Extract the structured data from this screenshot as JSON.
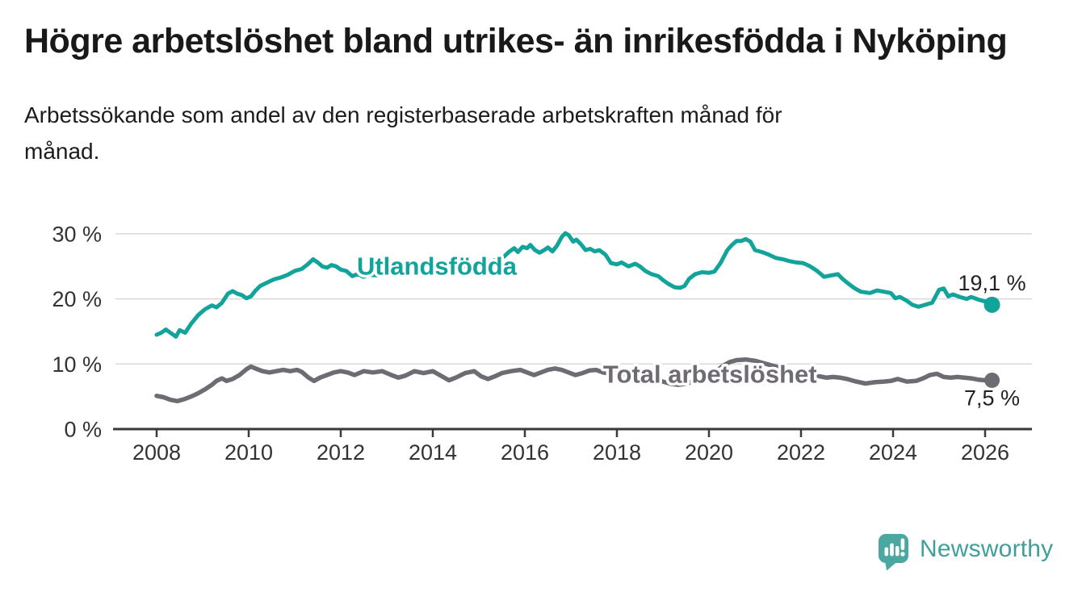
{
  "header": {
    "title": "Högre arbetslöshet bland utrikes- än inrikesfödda i Nyköping",
    "subtitle_line1": "Arbetssökande som andel av den registerbaserade arbetskraften månad för",
    "subtitle_line2": "månad."
  },
  "footer": {
    "logo_text": "Newsworthy",
    "logo_color": "#3f9f9c",
    "logo_icon_color": "#4aa7a1",
    "logo_icon": "speech-bubble-bar-chart-exclamation"
  },
  "chart_data": {
    "type": "line",
    "title": "Högre arbetslöshet bland utrikes- än inrikesfödda i Nyköping",
    "subtitle": "Arbetssökande som andel av den registerbaserade arbetskraften månad för månad.",
    "unit": "%",
    "grid": true,
    "legend_position": "inline-labels",
    "axis_color": "#3a3a3a",
    "grid_color": "#d9d9d9",
    "text_color": "#333333",
    "value_label_color": "#222222",
    "x_axis": {
      "ticks": [
        2008,
        2010,
        2012,
        2014,
        2016,
        2018,
        2020,
        2022,
        2024,
        2026
      ],
      "range": [
        2007.1,
        2027.0
      ]
    },
    "y_axis": {
      "ticks": [
        0,
        10,
        20,
        30
      ],
      "tick_suffix": " %",
      "range": [
        0,
        33
      ]
    },
    "series": [
      {
        "name": "Utlandsfödda",
        "color": "#12a39a",
        "line_width": 5,
        "inline_label": {
          "year": 2012.35,
          "value": 23.7
        },
        "end_dot": true,
        "end_value": 19.1,
        "end_label": "19,1 %",
        "end_label_position": "above",
        "points": [
          [
            2008.0,
            14.5
          ],
          [
            2008.1,
            14.8
          ],
          [
            2008.2,
            15.3
          ],
          [
            2008.3,
            14.8
          ],
          [
            2008.42,
            14.2
          ],
          [
            2008.5,
            15.2
          ],
          [
            2008.62,
            14.8
          ],
          [
            2008.75,
            16.2
          ],
          [
            2008.9,
            17.5
          ],
          [
            2009.05,
            18.4
          ],
          [
            2009.2,
            19.0
          ],
          [
            2009.3,
            18.7
          ],
          [
            2009.42,
            19.4
          ],
          [
            2009.55,
            20.8
          ],
          [
            2009.65,
            21.2
          ],
          [
            2009.75,
            20.8
          ],
          [
            2009.85,
            20.6
          ],
          [
            2009.95,
            20.1
          ],
          [
            2010.05,
            20.4
          ],
          [
            2010.15,
            21.3
          ],
          [
            2010.25,
            22.0
          ],
          [
            2010.4,
            22.5
          ],
          [
            2010.55,
            23.0
          ],
          [
            2010.7,
            23.3
          ],
          [
            2010.85,
            23.7
          ],
          [
            2011.0,
            24.3
          ],
          [
            2011.15,
            24.6
          ],
          [
            2011.28,
            25.3
          ],
          [
            2011.4,
            26.1
          ],
          [
            2011.5,
            25.6
          ],
          [
            2011.6,
            25.0
          ],
          [
            2011.7,
            24.8
          ],
          [
            2011.8,
            25.2
          ],
          [
            2011.9,
            25.0
          ],
          [
            2012.0,
            24.5
          ],
          [
            2012.12,
            24.3
          ],
          [
            2012.25,
            23.5
          ],
          [
            2012.37,
            23.8
          ],
          [
            2012.5,
            23.4
          ],
          [
            2012.62,
            23.7
          ],
          [
            2012.8,
            23.6
          ],
          [
            2013.0,
            23.9
          ],
          [
            2013.2,
            24.1
          ],
          [
            2013.4,
            24.0
          ],
          [
            2013.6,
            24.3
          ],
          [
            2013.8,
            24.5
          ],
          [
            2014.0,
            24.4
          ],
          [
            2014.25,
            24.7
          ],
          [
            2014.5,
            24.9
          ],
          [
            2014.75,
            25.1
          ],
          [
            2015.0,
            25.3
          ],
          [
            2015.2,
            25.6
          ],
          [
            2015.4,
            26.1
          ],
          [
            2015.55,
            26.5
          ],
          [
            2015.65,
            27.2
          ],
          [
            2015.77,
            27.8
          ],
          [
            2015.85,
            27.2
          ],
          [
            2015.95,
            28.0
          ],
          [
            2016.05,
            27.8
          ],
          [
            2016.12,
            28.3
          ],
          [
            2016.22,
            27.5
          ],
          [
            2016.32,
            27.1
          ],
          [
            2016.42,
            27.5
          ],
          [
            2016.5,
            27.9
          ],
          [
            2016.6,
            27.3
          ],
          [
            2016.7,
            28.2
          ],
          [
            2016.8,
            29.5
          ],
          [
            2016.88,
            30.1
          ],
          [
            2016.95,
            29.8
          ],
          [
            2017.05,
            28.8
          ],
          [
            2017.12,
            29.1
          ],
          [
            2017.22,
            28.4
          ],
          [
            2017.32,
            27.5
          ],
          [
            2017.42,
            27.7
          ],
          [
            2017.52,
            27.3
          ],
          [
            2017.62,
            27.5
          ],
          [
            2017.75,
            26.8
          ],
          [
            2017.87,
            25.5
          ],
          [
            2018.0,
            25.3
          ],
          [
            2018.1,
            25.6
          ],
          [
            2018.25,
            25.0
          ],
          [
            2018.4,
            25.4
          ],
          [
            2018.5,
            25.0
          ],
          [
            2018.62,
            24.3
          ],
          [
            2018.75,
            23.8
          ],
          [
            2018.9,
            23.5
          ],
          [
            2019.0,
            22.9
          ],
          [
            2019.12,
            22.3
          ],
          [
            2019.25,
            21.8
          ],
          [
            2019.37,
            21.7
          ],
          [
            2019.47,
            22.0
          ],
          [
            2019.57,
            23.1
          ],
          [
            2019.7,
            23.8
          ],
          [
            2019.85,
            24.1
          ],
          [
            2020.0,
            24.0
          ],
          [
            2020.12,
            24.2
          ],
          [
            2020.25,
            25.5
          ],
          [
            2020.4,
            27.5
          ],
          [
            2020.5,
            28.3
          ],
          [
            2020.6,
            28.9
          ],
          [
            2020.7,
            28.9
          ],
          [
            2020.8,
            29.2
          ],
          [
            2020.9,
            28.8
          ],
          [
            2021.0,
            27.5
          ],
          [
            2021.15,
            27.2
          ],
          [
            2021.3,
            26.8
          ],
          [
            2021.45,
            26.3
          ],
          [
            2021.6,
            26.1
          ],
          [
            2021.75,
            25.8
          ],
          [
            2021.9,
            25.6
          ],
          [
            2022.05,
            25.5
          ],
          [
            2022.2,
            25.0
          ],
          [
            2022.35,
            24.3
          ],
          [
            2022.5,
            23.4
          ],
          [
            2022.65,
            23.6
          ],
          [
            2022.8,
            23.8
          ],
          [
            2022.9,
            23.1
          ],
          [
            2023.0,
            22.5
          ],
          [
            2023.15,
            21.7
          ],
          [
            2023.3,
            21.1
          ],
          [
            2023.5,
            20.9
          ],
          [
            2023.65,
            21.3
          ],
          [
            2023.8,
            21.1
          ],
          [
            2023.95,
            20.9
          ],
          [
            2024.05,
            20.1
          ],
          [
            2024.15,
            20.3
          ],
          [
            2024.3,
            19.7
          ],
          [
            2024.42,
            19.1
          ],
          [
            2024.55,
            18.8
          ],
          [
            2024.7,
            19.1
          ],
          [
            2024.85,
            19.4
          ],
          [
            2025.0,
            21.4
          ],
          [
            2025.1,
            21.6
          ],
          [
            2025.2,
            20.4
          ],
          [
            2025.3,
            20.7
          ],
          [
            2025.45,
            20.3
          ],
          [
            2025.6,
            20.0
          ],
          [
            2025.7,
            20.3
          ],
          [
            2025.85,
            19.9
          ],
          [
            2026.0,
            19.6
          ],
          [
            2026.15,
            19.1
          ]
        ]
      },
      {
        "name": "Total arbetslöshet",
        "color": "#6f6b73",
        "line_width": 5.5,
        "inline_label": {
          "year": 2017.7,
          "value": 7.15
        },
        "end_dot": true,
        "end_value": 7.5,
        "end_label": "7,5 %",
        "end_label_position": "below",
        "points": [
          [
            2008.0,
            5.1
          ],
          [
            2008.15,
            4.9
          ],
          [
            2008.3,
            4.5
          ],
          [
            2008.45,
            4.3
          ],
          [
            2008.6,
            4.6
          ],
          [
            2008.75,
            5.0
          ],
          [
            2008.9,
            5.5
          ],
          [
            2009.05,
            6.1
          ],
          [
            2009.2,
            6.8
          ],
          [
            2009.3,
            7.4
          ],
          [
            2009.42,
            7.8
          ],
          [
            2009.52,
            7.4
          ],
          [
            2009.65,
            7.7
          ],
          [
            2009.8,
            8.3
          ],
          [
            2009.95,
            9.2
          ],
          [
            2010.05,
            9.6
          ],
          [
            2010.15,
            9.3
          ],
          [
            2010.3,
            8.9
          ],
          [
            2010.45,
            8.7
          ],
          [
            2010.6,
            8.9
          ],
          [
            2010.75,
            9.1
          ],
          [
            2010.9,
            8.9
          ],
          [
            2011.05,
            9.1
          ],
          [
            2011.15,
            8.8
          ],
          [
            2011.3,
            7.9
          ],
          [
            2011.42,
            7.4
          ],
          [
            2011.55,
            7.9
          ],
          [
            2011.7,
            8.3
          ],
          [
            2011.85,
            8.7
          ],
          [
            2012.0,
            8.9
          ],
          [
            2012.15,
            8.7
          ],
          [
            2012.3,
            8.3
          ],
          [
            2012.5,
            8.9
          ],
          [
            2012.7,
            8.7
          ],
          [
            2012.9,
            8.9
          ],
          [
            2013.1,
            8.3
          ],
          [
            2013.25,
            7.9
          ],
          [
            2013.4,
            8.2
          ],
          [
            2013.6,
            8.9
          ],
          [
            2013.8,
            8.6
          ],
          [
            2014.0,
            8.9
          ],
          [
            2014.2,
            8.1
          ],
          [
            2014.35,
            7.5
          ],
          [
            2014.5,
            7.9
          ],
          [
            2014.7,
            8.6
          ],
          [
            2014.9,
            8.9
          ],
          [
            2015.05,
            8.1
          ],
          [
            2015.2,
            7.7
          ],
          [
            2015.35,
            8.1
          ],
          [
            2015.5,
            8.6
          ],
          [
            2015.7,
            8.9
          ],
          [
            2015.9,
            9.1
          ],
          [
            2016.05,
            8.7
          ],
          [
            2016.2,
            8.3
          ],
          [
            2016.35,
            8.7
          ],
          [
            2016.5,
            9.1
          ],
          [
            2016.65,
            9.3
          ],
          [
            2016.8,
            9.1
          ],
          [
            2016.95,
            8.7
          ],
          [
            2017.1,
            8.3
          ],
          [
            2017.25,
            8.6
          ],
          [
            2017.4,
            9.0
          ],
          [
            2017.55,
            9.1
          ],
          [
            2017.7,
            8.7
          ],
          [
            2017.85,
            8.5
          ],
          [
            2018.0,
            8.6
          ],
          [
            2018.2,
            8.4
          ],
          [
            2018.4,
            8.2
          ],
          [
            2018.6,
            8.0
          ],
          [
            2018.8,
            7.7
          ],
          [
            2019.0,
            7.3
          ],
          [
            2019.2,
            6.9
          ],
          [
            2019.35,
            6.8
          ],
          [
            2019.5,
            7.0
          ],
          [
            2019.7,
            7.4
          ],
          [
            2019.9,
            7.9
          ],
          [
            2020.1,
            8.5
          ],
          [
            2020.3,
            9.7
          ],
          [
            2020.45,
            10.3
          ],
          [
            2020.6,
            10.6
          ],
          [
            2020.8,
            10.7
          ],
          [
            2021.0,
            10.5
          ],
          [
            2021.2,
            10.1
          ],
          [
            2021.4,
            9.7
          ],
          [
            2021.6,
            9.3
          ],
          [
            2021.8,
            8.9
          ],
          [
            2022.0,
            8.6
          ],
          [
            2022.2,
            8.3
          ],
          [
            2022.4,
            8.1
          ],
          [
            2022.55,
            7.9
          ],
          [
            2022.7,
            8.0
          ],
          [
            2022.85,
            7.9
          ],
          [
            2023.0,
            7.7
          ],
          [
            2023.2,
            7.3
          ],
          [
            2023.4,
            7.0
          ],
          [
            2023.6,
            7.2
          ],
          [
            2023.8,
            7.3
          ],
          [
            2023.95,
            7.4
          ],
          [
            2024.1,
            7.7
          ],
          [
            2024.3,
            7.3
          ],
          [
            2024.5,
            7.4
          ],
          [
            2024.65,
            7.8
          ],
          [
            2024.8,
            8.3
          ],
          [
            2024.95,
            8.5
          ],
          [
            2025.1,
            8.0
          ],
          [
            2025.25,
            7.9
          ],
          [
            2025.4,
            8.0
          ],
          [
            2025.55,
            7.9
          ],
          [
            2025.7,
            7.8
          ],
          [
            2025.85,
            7.6
          ],
          [
            2026.0,
            7.5
          ],
          [
            2026.15,
            7.5
          ]
        ]
      }
    ]
  }
}
